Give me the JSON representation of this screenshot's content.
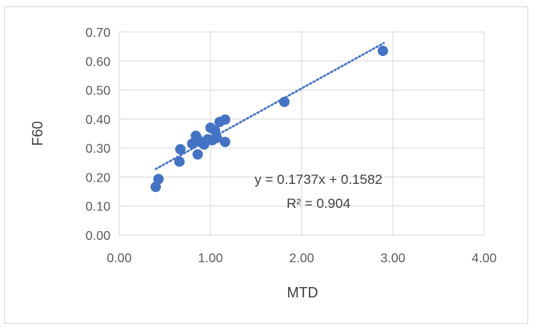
{
  "chart_data": {
    "type": "scatter",
    "title": "",
    "xlabel": "MTD",
    "ylabel": "F60",
    "xlim": [
      0,
      4
    ],
    "ylim": [
      0,
      0.7
    ],
    "x_ticks": [
      "0.00",
      "1.00",
      "2.00",
      "3.00",
      "4.00"
    ],
    "y_ticks": [
      "0.00",
      "0.10",
      "0.20",
      "0.30",
      "0.40",
      "0.50",
      "0.60",
      "0.70"
    ],
    "grid": true,
    "legend": "none",
    "marker_color": "#4472c4",
    "trendline": {
      "type": "linear",
      "slope": 0.1737,
      "intercept": 0.1582,
      "x_range": [
        0.4,
        2.9
      ],
      "style": "dotted",
      "color": "#4472c4",
      "equation": "y = 0.1737x + 0.1582",
      "r_squared": "R² = 0.904"
    },
    "points": [
      {
        "x": 0.4,
        "y": 0.166
      },
      {
        "x": 0.43,
        "y": 0.193
      },
      {
        "x": 0.66,
        "y": 0.253
      },
      {
        "x": 0.67,
        "y": 0.296
      },
      {
        "x": 0.8,
        "y": 0.315
      },
      {
        "x": 0.84,
        "y": 0.342
      },
      {
        "x": 0.86,
        "y": 0.33
      },
      {
        "x": 0.86,
        "y": 0.278
      },
      {
        "x": 0.9,
        "y": 0.32
      },
      {
        "x": 0.93,
        "y": 0.312
      },
      {
        "x": 0.97,
        "y": 0.33
      },
      {
        "x": 1.0,
        "y": 0.37
      },
      {
        "x": 1.02,
        "y": 0.327
      },
      {
        "x": 1.05,
        "y": 0.36
      },
      {
        "x": 1.07,
        "y": 0.335
      },
      {
        "x": 1.1,
        "y": 0.39
      },
      {
        "x": 1.16,
        "y": 0.398
      },
      {
        "x": 1.16,
        "y": 0.321
      },
      {
        "x": 1.81,
        "y": 0.459
      },
      {
        "x": 2.89,
        "y": 0.635
      }
    ]
  }
}
